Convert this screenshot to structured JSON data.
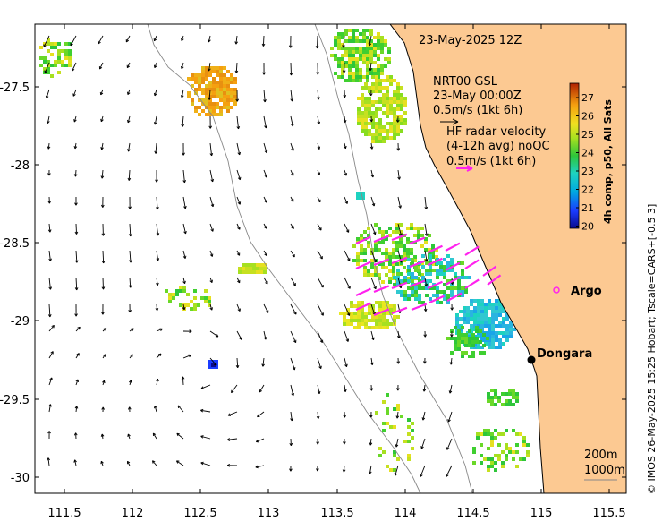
{
  "map": {
    "date_label": "23-May-2025 12Z",
    "model_label": {
      "line1": "NRT00 GSL",
      "line2": "23-May 00:00Z",
      "line3": "0.5m/s (1kt 6h)"
    },
    "radar_label": {
      "line1": "HF radar velocity",
      "line2": "(4-12h avg) noQC",
      "line3": "0.5m/s (1kt 6h)"
    },
    "places": [
      {
        "name": "Argo",
        "lon": 114.95,
        "lat": -28.83,
        "marker": "magenta-circle"
      },
      {
        "name": "Dongara",
        "lon": 114.92,
        "lat": -29.26,
        "marker": "black-dot"
      }
    ],
    "isobaths": [
      "200m",
      "1000m"
    ],
    "credit": "© IMOS 26-May-2025 15:25 Hobart; Tscale=CARS+[-0.5 3]",
    "x_ticks": [
      "111.5",
      "112",
      "112.5",
      "113",
      "113.5",
      "114",
      "114.5",
      "115",
      "115.5"
    ],
    "y_ticks": [
      "-27.5",
      "-28",
      "-28.5",
      "-29",
      "-29.5",
      "-30"
    ],
    "colorbar": {
      "title": "4h comp, p50, All Sats",
      "ticks": [
        "27",
        "26",
        "25",
        "24",
        "23",
        "22",
        "21",
        "20"
      ]
    },
    "colors": {
      "land": "#fcc992",
      "radar_vectors": "#ff22ee",
      "model_vectors": "#000000"
    }
  }
}
